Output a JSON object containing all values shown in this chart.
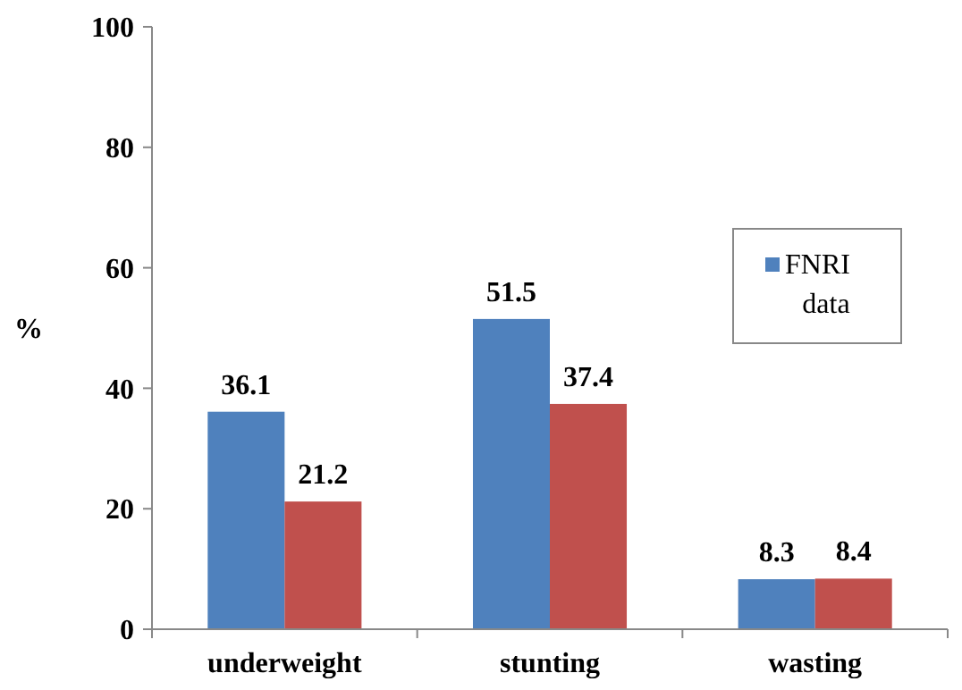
{
  "chart_data": {
    "type": "bar",
    "ylabel": "%",
    "categories": [
      "underweight",
      "stunting",
      "wasting"
    ],
    "series": [
      {
        "name": "FNRI data",
        "color": "#4f81bd",
        "values": [
          36.1,
          51.5,
          8.3
        ]
      },
      {
        "color": "#c0504d",
        "values": [
          21.2,
          37.4,
          8.4
        ]
      }
    ],
    "ylim": [
      0,
      100
    ],
    "yticks": [
      0,
      20,
      40,
      60,
      80,
      100
    ],
    "data_labels": true,
    "legend": "right",
    "grid": false
  }
}
